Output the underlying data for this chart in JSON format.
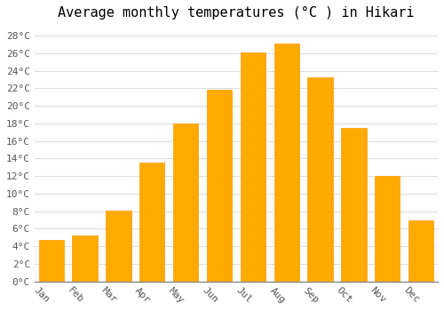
{
  "title": "Average monthly temperatures (°C ) in Hikari",
  "months": [
    "Jan",
    "Feb",
    "Mar",
    "Apr",
    "May",
    "Jun",
    "Jul",
    "Aug",
    "Sep",
    "Oct",
    "Nov",
    "Dec"
  ],
  "temperatures": [
    4.7,
    5.2,
    8.1,
    13.5,
    18.0,
    21.8,
    26.1,
    27.1,
    23.2,
    17.5,
    12.0,
    7.0
  ],
  "bar_color": "#FFAA00",
  "bar_edge_color": "#FF9900",
  "background_color": "#ffffff",
  "grid_color": "#dddddd",
  "ylim": [
    0,
    29
  ],
  "yticks": [
    0,
    2,
    4,
    6,
    8,
    10,
    12,
    14,
    16,
    18,
    20,
    22,
    24,
    26,
    28
  ],
  "title_fontsize": 11,
  "tick_fontsize": 8,
  "font_family": "monospace",
  "bar_width": 0.75
}
